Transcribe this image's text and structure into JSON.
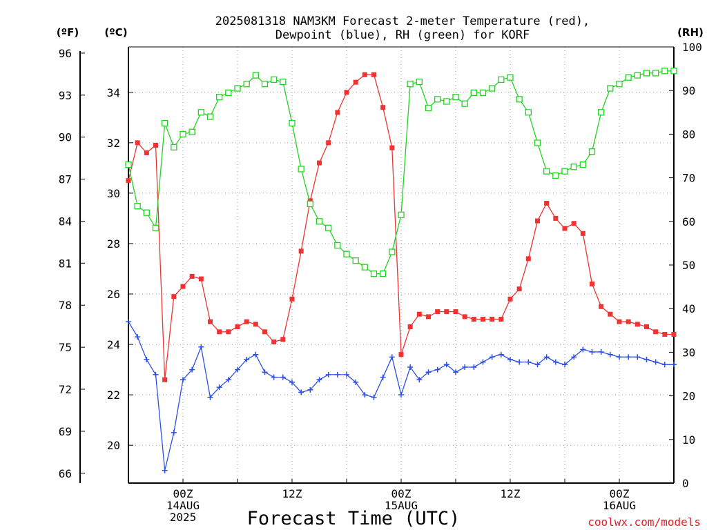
{
  "chart_data": {
    "type": "line",
    "title_line1": "2025081318 NAM3KM Forecast 2-meter Temperature (red),",
    "title_line2": "Dewpoint (blue), RH (green) for KORF",
    "xlabel": "Forecast Time (UTC)",
    "credit": "coolwx.com/models",
    "left_axis_f_label": "(ºF)",
    "left_axis_c_label": "(ºC)",
    "right_axis_label": "(RH)",
    "x_hours": [
      18,
      19,
      20,
      21,
      22,
      23,
      24,
      25,
      26,
      27,
      28,
      29,
      30,
      31,
      32,
      33,
      34,
      35,
      36,
      37,
      38,
      39,
      40,
      41,
      42,
      43,
      44,
      45,
      46,
      47,
      48,
      49,
      50,
      51,
      52,
      53,
      54,
      55,
      56,
      57,
      58,
      59,
      60,
      61,
      62,
      63,
      64,
      65,
      66,
      67,
      68,
      69,
      70,
      71,
      72,
      73,
      74,
      75,
      76,
      77,
      78
    ],
    "xlim": [
      18,
      78
    ],
    "x_ticks": [
      {
        "hour": 24,
        "lines": [
          "00Z",
          "14AUG",
          "2025"
        ]
      },
      {
        "hour": 36,
        "lines": [
          "12Z"
        ]
      },
      {
        "hour": 48,
        "lines": [
          "00Z",
          "15AUG"
        ]
      },
      {
        "hour": 60,
        "lines": [
          "12Z"
        ]
      },
      {
        "hour": 72,
        "lines": [
          "00Z",
          "16AUG"
        ]
      }
    ],
    "celsius_ticks": [
      20,
      22,
      24,
      26,
      28,
      30,
      32,
      34
    ],
    "ylim_celsius": [
      18.5,
      35.8
    ],
    "fahrenheit_ticks": [
      66,
      69,
      72,
      75,
      78,
      81,
      84,
      87,
      90,
      93,
      96
    ],
    "rh_ticks": [
      0,
      10,
      20,
      30,
      40,
      50,
      60,
      70,
      80,
      90,
      100
    ],
    "ylim_rh": [
      0,
      100
    ],
    "grid": true,
    "series": [
      {
        "name": "Temperature",
        "axis": "celsius",
        "color": "#f03232",
        "marker": "filled-square",
        "values": [
          30.5,
          32.0,
          31.6,
          31.9,
          22.6,
          25.9,
          26.3,
          26.7,
          26.6,
          24.9,
          24.5,
          24.5,
          24.7,
          24.9,
          24.8,
          24.5,
          24.1,
          24.2,
          25.8,
          27.7,
          29.7,
          31.2,
          32.0,
          33.2,
          34.0,
          34.4,
          34.7,
          34.7,
          33.4,
          31.8,
          23.6,
          24.7,
          25.2,
          25.1,
          25.3,
          25.3,
          25.3,
          25.1,
          25.0,
          25.0,
          25.0,
          25.0,
          25.8,
          26.2,
          27.4,
          28.9,
          29.6,
          29.0,
          28.6,
          28.8,
          28.4,
          26.4,
          25.5,
          25.2,
          24.9,
          24.9,
          24.8,
          24.7,
          24.5,
          24.4,
          24.4
        ]
      },
      {
        "name": "Dewpoint",
        "axis": "celsius",
        "color": "#2b4ee6",
        "marker": "plus",
        "values": [
          24.9,
          24.3,
          23.4,
          22.8,
          19.0,
          20.5,
          22.6,
          23.0,
          23.9,
          21.9,
          22.3,
          22.6,
          23.0,
          23.4,
          23.6,
          22.9,
          22.7,
          22.7,
          22.5,
          22.1,
          22.2,
          22.6,
          22.8,
          22.8,
          22.8,
          22.5,
          22.0,
          21.9,
          22.7,
          23.5,
          22.0,
          23.1,
          22.6,
          22.9,
          23.0,
          23.2,
          22.9,
          23.1,
          23.1,
          23.3,
          23.5,
          23.6,
          23.4,
          23.3,
          23.3,
          23.2,
          23.5,
          23.3,
          23.2,
          23.5,
          23.8,
          23.7,
          23.7,
          23.6,
          23.5,
          23.5,
          23.5,
          23.4,
          23.3,
          23.2,
          23.2
        ]
      },
      {
        "name": "RH",
        "axis": "rh",
        "color": "#22d422",
        "marker": "open-square",
        "values": [
          73,
          63.5,
          62,
          58.5,
          82.5,
          77,
          80,
          80.5,
          85,
          84,
          88.5,
          89.5,
          90.5,
          91.5,
          93.5,
          91.5,
          92.5,
          92,
          82.5,
          72,
          64,
          60,
          58.5,
          54.5,
          52.5,
          51,
          49.5,
          48,
          48,
          53,
          61.5,
          91.5,
          92,
          86,
          88,
          87.5,
          88.5,
          87,
          89.5,
          89.5,
          90.5,
          92.5,
          93,
          88,
          85,
          78,
          71.5,
          70.5,
          71.5,
          72.5,
          73,
          76,
          85,
          90.5,
          91.5,
          93,
          93.5,
          94,
          94,
          94.5,
          94.5
        ]
      }
    ]
  }
}
